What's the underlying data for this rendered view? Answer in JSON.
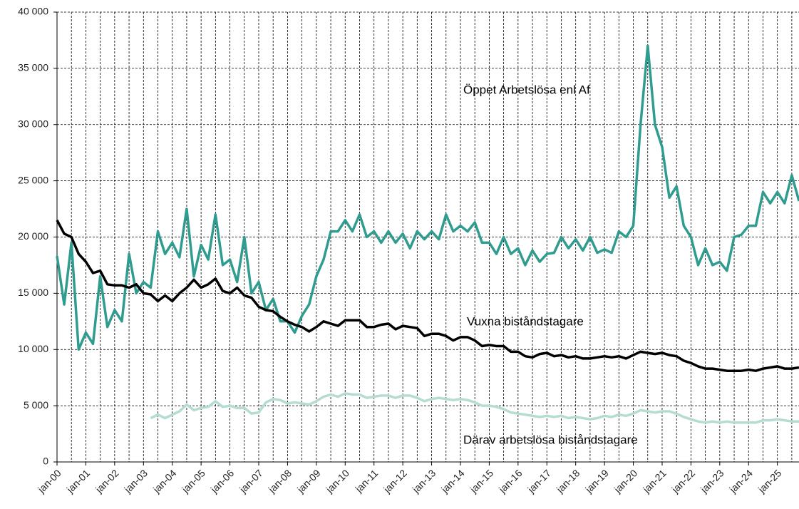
{
  "chart_data": {
    "type": "line",
    "categories": [
      "jan-00",
      null,
      null,
      null,
      "jan-01",
      null,
      null,
      null,
      "jan-02",
      null,
      null,
      null,
      "jan-03",
      null,
      null,
      null,
      "jan-04",
      null,
      null,
      null,
      "jan-05",
      null,
      null,
      null,
      "jan-06",
      null,
      null,
      null,
      "jan-07",
      null,
      null,
      null,
      "jan-08",
      null,
      null,
      null,
      "jan-09",
      null,
      null,
      null,
      "jan-10",
      null,
      null,
      null,
      "jan-11",
      null,
      null,
      null,
      "jan-12",
      null,
      null,
      null,
      "jan-13",
      null,
      null,
      null,
      "jan-14",
      null,
      null,
      null,
      "jan-15",
      null,
      null,
      null,
      "jan-16",
      null,
      null,
      null,
      "jan-17",
      null,
      null,
      null,
      "jan-18",
      null,
      null,
      null,
      "jan-19",
      null,
      null,
      null,
      "jan-20",
      null,
      null,
      null,
      "jan-21",
      null,
      null,
      null,
      "jan-22",
      null,
      null,
      null,
      "jan-23",
      null,
      null,
      null,
      "jan-24",
      null,
      null,
      null,
      "jan-25",
      null,
      null,
      null
    ],
    "series": [
      {
        "name": "Öppet Arbetslösa enl Af",
        "color": "#2f9c8f",
        "values": [
          18300,
          14000,
          19500,
          10000,
          11500,
          10500,
          16500,
          12000,
          13500,
          12500,
          18500,
          15000,
          16000,
          15500,
          20500,
          18500,
          19500,
          18200,
          22500,
          16500,
          19300,
          18000,
          22000,
          17500,
          18000,
          16000,
          20000,
          15000,
          16000,
          13500,
          14500,
          12500,
          12500,
          11500,
          13000,
          14000,
          16500,
          18000,
          20500,
          20500,
          21500,
          20500,
          22000,
          20000,
          20500,
          19500,
          20500,
          19500,
          20300,
          19000,
          20500,
          19800,
          20500,
          19800,
          22000,
          20500,
          21000,
          20500,
          21300,
          19500,
          19500,
          18500,
          20000,
          18500,
          19000,
          17500,
          18800,
          17800,
          18500,
          18600,
          20000,
          19000,
          19800,
          18800,
          20000,
          18600,
          18900,
          18600,
          20500,
          20000,
          21000,
          30000,
          37000,
          30000,
          28000,
          23500,
          24500,
          21000,
          20000,
          17500,
          19000,
          17500,
          17800,
          17000,
          20000,
          20200,
          21000,
          21000,
          24000,
          23000,
          24000,
          23000,
          25500,
          23200
        ]
      },
      {
        "name": "Vuxna biståndstagare",
        "color": "#000000",
        "values": [
          21500,
          20300,
          20000,
          18500,
          17800,
          16800,
          17000,
          15800,
          15700,
          15700,
          15500,
          15800,
          15000,
          14900,
          14300,
          14800,
          14300,
          15000,
          15500,
          16200,
          15500,
          15800,
          16300,
          15200,
          15000,
          15500,
          14800,
          14600,
          13800,
          13500,
          13400,
          12900,
          12500,
          12200,
          12000,
          11600,
          12000,
          12500,
          12300,
          12100,
          12600,
          12600,
          12600,
          12000,
          12000,
          12200,
          12300,
          11800,
          12100,
          12000,
          11900,
          11200,
          11400,
          11400,
          11200,
          10800,
          11100,
          11100,
          10800,
          10300,
          10400,
          10300,
          10300,
          9800,
          9800,
          9400,
          9300,
          9600,
          9700,
          9400,
          9500,
          9300,
          9400,
          9200,
          9200,
          9300,
          9400,
          9300,
          9400,
          9200,
          9500,
          9800,
          9700,
          9600,
          9700,
          9500,
          9400,
          9000,
          8800,
          8500,
          8300,
          8300,
          8200,
          8100,
          8100,
          8100,
          8200,
          8100,
          8300,
          8400,
          8500,
          8300,
          8300,
          8400
        ]
      },
      {
        "name": "Därav arbetslösa biståndstagare",
        "color": "#b5dcd3",
        "values": [
          null,
          null,
          null,
          null,
          null,
          null,
          null,
          null,
          null,
          null,
          null,
          null,
          null,
          3900,
          4200,
          3900,
          4200,
          4500,
          5100,
          4600,
          4800,
          4900,
          5400,
          4900,
          5000,
          4800,
          4800,
          4300,
          4400,
          5300,
          5600,
          5500,
          5200,
          5300,
          5200,
          5100,
          5400,
          5800,
          6000,
          5800,
          6100,
          6000,
          6000,
          5700,
          5800,
          5900,
          5900,
          5700,
          5900,
          5900,
          5700,
          5400,
          5600,
          5700,
          5600,
          5500,
          5600,
          5500,
          5300,
          5000,
          5000,
          4900,
          4700,
          4400,
          4300,
          4200,
          4100,
          4000,
          4100,
          4000,
          4100,
          3900,
          4000,
          3900,
          3800,
          3900,
          4100,
          4000,
          4200,
          4100,
          4300,
          4600,
          4500,
          4400,
          4500,
          4500,
          4300,
          4000,
          3800,
          3600,
          3500,
          3600,
          3500,
          3600,
          3500,
          3500,
          3500,
          3500,
          3700,
          3700,
          3800,
          3700,
          3600,
          3600
        ]
      }
    ],
    "ylim": [
      0,
      40000
    ],
    "yticks": [
      0,
      {
        "value": 5000,
        "label": "5 000"
      },
      {
        "value": 10000,
        "label": "10 000"
      },
      {
        "value": 15000,
        "label": "15 000"
      },
      {
        "value": 20000,
        "label": "20 000"
      },
      {
        "value": 25000,
        "label": "25 000"
      },
      {
        "value": 30000,
        "label": "30 000"
      },
      {
        "value": 35000,
        "label": "35 000"
      },
      {
        "value": 40000,
        "label": "40 000"
      }
    ],
    "grid": true
  }
}
